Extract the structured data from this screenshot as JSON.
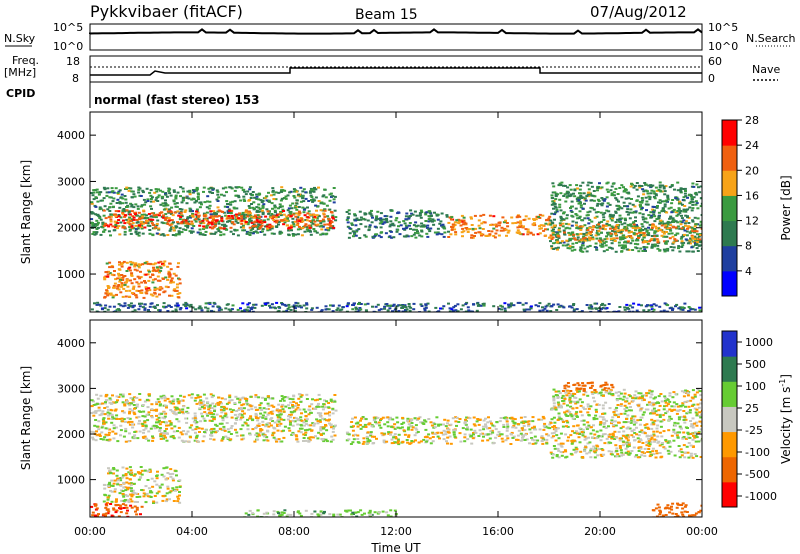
{
  "header": {
    "radar": "Pykkvibaer (fitACF)",
    "beam": "Beam 15",
    "date": "07/Aug/2012"
  },
  "status_panels": {
    "nsky_label": "N.Sky",
    "nsearch_label": "N.Search",
    "nsky_ticks": [
      "10^5",
      "10^0"
    ],
    "nsearch_ticks": [
      "10^5",
      "10^0"
    ],
    "freq_label_1": "Freq.",
    "freq_label_2": "[MHz]",
    "freq_ticks": [
      "18",
      "8"
    ],
    "nave_label": "Nave",
    "nave_ticks": [
      "60",
      "0"
    ],
    "cpid_label": "CPID",
    "cpid_value": "normal (fast stereo) 153"
  },
  "colors": {
    "power": [
      "#0000ff",
      "#1f3f9f",
      "#2e7a50",
      "#3a9a40",
      "#f7a318",
      "#f06010",
      "#ff0000"
    ],
    "velocity": [
      "#ff0000",
      "#ee6600",
      "#ff9900",
      "#c8c8c0",
      "#66cc33",
      "#2e7a50",
      "#2233cc"
    ],
    "background": "#ffffff"
  },
  "chart_data": [
    {
      "type": "heatmap",
      "title": "Power",
      "ylabel": "Slant Range [km]",
      "yticks": [
        "1000",
        "2000",
        "3000",
        "4000"
      ],
      "ylim": [
        180,
        4500
      ],
      "x": [
        "00:00",
        "04:00",
        "08:00",
        "12:00",
        "16:00",
        "20:00",
        "00:00"
      ],
      "colorbar_label": "Power [dB]",
      "colorbar_ticks": [
        "4",
        "8",
        "12",
        "16",
        "20",
        "24",
        "28"
      ],
      "bands": [
        {
          "t0": 0.0,
          "t1": 9.6,
          "r0": 1850,
          "r1": 2900,
          "value": 12
        },
        {
          "t0": 0.5,
          "t1": 9.5,
          "r0": 2000,
          "r1": 2400,
          "value": 22
        },
        {
          "t0": 10.0,
          "t1": 14.0,
          "r0": 1800,
          "r1": 2400,
          "value": 10
        },
        {
          "t0": 14.0,
          "t1": 18.0,
          "r0": 1800,
          "r1": 2300,
          "value": 20
        },
        {
          "t0": 18.0,
          "t1": 24.0,
          "r0": 1500,
          "r1": 3000,
          "value": 12
        },
        {
          "t0": 18.0,
          "t1": 24.0,
          "r0": 1700,
          "r1": 2100,
          "value": 18
        },
        {
          "t0": 0.5,
          "t1": 3.5,
          "r0": 500,
          "r1": 1300,
          "value": 20
        },
        {
          "t0": 0.0,
          "t1": 24.0,
          "r0": 180,
          "r1": 400,
          "value": 8
        }
      ]
    },
    {
      "type": "heatmap",
      "title": "Velocity",
      "ylabel": "Slant Range [km]",
      "yticks": [
        "1000",
        "2000",
        "3000",
        "4000"
      ],
      "ylim": [
        180,
        4500
      ],
      "x": [
        "00:00",
        "04:00",
        "08:00",
        "12:00",
        "16:00",
        "20:00",
        "00:00"
      ],
      "xlabel": "Time UT",
      "colorbar_label": "Velocity [m s^-1]",
      "colorbar_ticks": [
        "-1000",
        "-500",
        "-100",
        "-25",
        "25",
        "100",
        "500",
        "1000"
      ],
      "bands": [
        {
          "t0": 0.0,
          "t1": 9.6,
          "r0": 1850,
          "r1": 2900,
          "value": 0
        },
        {
          "t0": 10.0,
          "t1": 18.0,
          "r0": 1800,
          "r1": 2400,
          "value": 0
        },
        {
          "t0": 18.0,
          "t1": 24.0,
          "r0": 1500,
          "r1": 3000,
          "value": 0
        },
        {
          "t0": 0.5,
          "t1": 3.5,
          "r0": 500,
          "r1": 1300,
          "value": 0
        },
        {
          "t0": 0.0,
          "t1": 2.0,
          "r0": 180,
          "r1": 500,
          "value": -500
        },
        {
          "t0": 18.5,
          "t1": 20.5,
          "r0": 2950,
          "r1": 3150,
          "value": -300
        },
        {
          "t0": 22.0,
          "t1": 24.0,
          "r0": 180,
          "r1": 500,
          "value": -400
        },
        {
          "t0": 6.0,
          "t1": 12.0,
          "r0": 180,
          "r1": 350,
          "value": 60
        }
      ]
    }
  ],
  "axis": {
    "range_label": "Slant Range [km]",
    "time_label": "Time UT",
    "power_label": "Power [dB]",
    "velocity_label": "Velocity [m s",
    "velocity_sup": "-1",
    "velocity_close": "]"
  }
}
